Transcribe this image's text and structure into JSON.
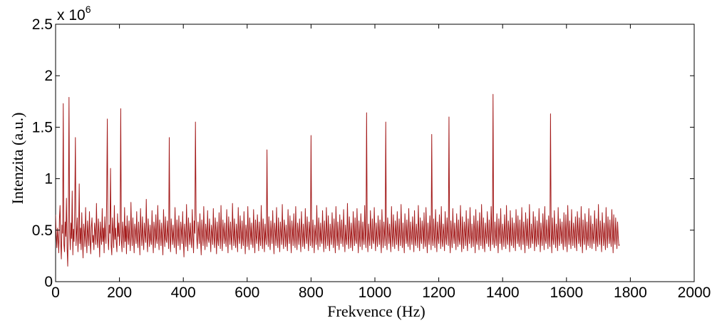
{
  "chart_data": {
    "type": "line",
    "title": "",
    "xlabel": "Frekvence (Hz)",
    "ylabel": "Intenzita (a.u.)",
    "xlim": [
      0,
      2000
    ],
    "ylim": [
      0,
      2.5
    ],
    "y_multiplier_base": "x 10",
    "y_multiplier_exponent": "6",
    "x_ticks": [
      "0",
      "200",
      "400",
      "600",
      "800",
      "1000",
      "1200",
      "1400",
      "1600",
      "1800",
      "2000"
    ],
    "y_ticks": [
      "0",
      "0.5",
      "1",
      "1.5",
      "2",
      "2.5"
    ],
    "grid": false,
    "legend": "none",
    "line_color": "#a31a1a",
    "x_start": 0,
    "x_step": 2,
    "series": [
      {
        "values": [
          0.65,
          0.45,
          0.33,
          0.52,
          0.41,
          0.28,
          0.61,
          0.74,
          0.39,
          0.22,
          0.55,
          0.47,
          1.73,
          0.36,
          0.29,
          0.58,
          0.44,
          0.81,
          0.33,
          0.15,
          0.62,
          1.79,
          0.48,
          0.31,
          0.57,
          0.42,
          0.88,
          0.26,
          0.51,
          0.39,
          0.73,
          1.4,
          0.35,
          0.48,
          0.62,
          0.29,
          0.44,
          0.95,
          0.37,
          0.52,
          0.31,
          0.67,
          0.41,
          0.23,
          0.56,
          0.48,
          0.34,
          0.72,
          0.43,
          0.28,
          0.59,
          0.46,
          0.35,
          0.68,
          0.41,
          0.27,
          0.53,
          0.62,
          0.38,
          0.45,
          0.31,
          0.57,
          0.49,
          0.36,
          0.76,
          0.42,
          0.33,
          0.61,
          0.47,
          0.24,
          0.58,
          0.44,
          0.36,
          0.71,
          0.39,
          0.52,
          0.28,
          0.63,
          0.45,
          0.37,
          0.82,
          1.58,
          0.43,
          0.31,
          0.55,
          0.47,
          1.1,
          0.35,
          0.26,
          0.62,
          0.48,
          0.33,
          0.74,
          0.41,
          0.52,
          0.38,
          0.29,
          0.66,
          0.44,
          0.57,
          0.35,
          0.48,
          1.68,
          0.41,
          0.29,
          0.58,
          0.46,
          0.33,
          0.72,
          0.39,
          0.54,
          0.27,
          0.64,
          0.45,
          0.36,
          0.59,
          0.42,
          0.3,
          0.77,
          0.47,
          0.35,
          0.62,
          0.43,
          0.28,
          0.56,
          0.49,
          0.37,
          0.68,
          0.41,
          0.33,
          0.58,
          0.45,
          0.26,
          0.71,
          0.48,
          0.35,
          0.63,
          0.42,
          0.31,
          0.57,
          0.46,
          0.38,
          0.8,
          0.43,
          0.29,
          0.61,
          0.47,
          0.34,
          0.55,
          0.41,
          0.36,
          0.69,
          0.44,
          0.28,
          0.58,
          0.49,
          0.33,
          0.65,
          0.42,
          0.37,
          0.74,
          0.45,
          0.31,
          0.6,
          0.47,
          0.35,
          0.57,
          0.43,
          0.26,
          0.7,
          0.48,
          0.34,
          0.63,
          0.41,
          0.38,
          0.59,
          0.46,
          0.32,
          1.4,
          0.44,
          0.29,
          0.61,
          0.48,
          0.36,
          0.55,
          0.42,
          0.33,
          0.72,
          0.45,
          0.27,
          0.6,
          0.47,
          0.35,
          0.64,
          0.43,
          0.31,
          0.58,
          0.49,
          0.37,
          0.68,
          0.41,
          0.24,
          0.56,
          0.46,
          0.34,
          0.75,
          0.44,
          0.3,
          0.62,
          0.48,
          0.36,
          0.57,
          0.42,
          0.33,
          0.7,
          0.45,
          0.28,
          0.59,
          0.47,
          1.55,
          0.65,
          0.43,
          0.32,
          0.58,
          0.49,
          0.37,
          0.66,
          0.41,
          0.26,
          0.6,
          0.46,
          0.35,
          0.73,
          0.44,
          0.31,
          0.56,
          0.48,
          0.34,
          0.69,
          0.42,
          0.38,
          0.61,
          0.45,
          0.29,
          0.55,
          0.47,
          0.36,
          0.71,
          0.43,
          0.33,
          0.62,
          0.49,
          0.27,
          0.58,
          0.41,
          0.35,
          0.67,
          0.46,
          0.32,
          0.74,
          0.44,
          0.3,
          0.6,
          0.48,
          0.37,
          0.57,
          0.42,
          0.34,
          0.7,
          0.45,
          0.28,
          0.63,
          0.47,
          0.36,
          0.58,
          0.43,
          0.31,
          0.76,
          0.49,
          0.35,
          0.61,
          0.41,
          0.33,
          0.56,
          0.46,
          0.29,
          0.72,
          0.44,
          0.37,
          0.64,
          0.48,
          0.32,
          0.59,
          0.42,
          0.35,
          0.68,
          0.45,
          0.27,
          0.55,
          0.47,
          0.34,
          0.73,
          0.43,
          0.31,
          0.62,
          0.49,
          0.36,
          0.57,
          0.41,
          0.33,
          0.7,
          0.46,
          0.28,
          0.6,
          0.44,
          0.37,
          0.65,
          0.48,
          0.3,
          0.58,
          0.42,
          0.35,
          0.74,
          0.45,
          0.32,
          0.61,
          0.47,
          0.29,
          0.56,
          0.43,
          0.36,
          1.28,
          0.49,
          0.34,
          0.63,
          0.41,
          0.31,
          0.59,
          0.46,
          0.37,
          0.69,
          0.44,
          0.27,
          0.57,
          0.48,
          0.35,
          0.72,
          0.42,
          0.33,
          0.62,
          0.45,
          0.29,
          0.58,
          0.47,
          0.36,
          0.75,
          0.43,
          0.32,
          0.6,
          0.49,
          0.34,
          0.55,
          0.41,
          0.3,
          0.7,
          0.46,
          0.37,
          0.64,
          0.44,
          0.28,
          0.59,
          0.48,
          0.35,
          0.66,
          0.42,
          0.33,
          0.73,
          0.45,
          0.31,
          0.57,
          0.47,
          0.36,
          0.61,
          0.43,
          0.29,
          0.68,
          0.49,
          0.34,
          0.56,
          0.41,
          0.32,
          0.71,
          0.46,
          0.37,
          0.63,
          0.44,
          0.3,
          0.58,
          0.48,
          0.35,
          1.42,
          0.42,
          0.33,
          0.6,
          0.45,
          0.28,
          0.55,
          0.47,
          0.36,
          0.74,
          0.43,
          0.31,
          0.62,
          0.49,
          0.34,
          0.57,
          0.41,
          0.37,
          0.69,
          0.46,
          0.29,
          0.59,
          0.44,
          0.32,
          0.72,
          0.48,
          0.35,
          0.64,
          0.42,
          0.3,
          0.56,
          0.45,
          0.36,
          0.67,
          0.47,
          0.33,
          0.61,
          0.43,
          0.28,
          0.73,
          0.49,
          0.35,
          0.58,
          0.41,
          0.31,
          0.65,
          0.46,
          0.37,
          0.6,
          0.44,
          0.34,
          0.7,
          0.48,
          0.29,
          0.55,
          0.42,
          0.36,
          0.76,
          0.45,
          0.32,
          0.63,
          0.47,
          0.33,
          0.57,
          0.43,
          0.3,
          0.68,
          0.49,
          0.35,
          0.62,
          0.41,
          0.37,
          0.71,
          0.46,
          0.28,
          0.59,
          0.44,
          0.34,
          0.66,
          0.48,
          0.31,
          0.58,
          0.42,
          0.36,
          0.74,
          0.45,
          0.33,
          1.64,
          0.47,
          0.29,
          0.56,
          0.43,
          0.35,
          0.69,
          0.49,
          0.32,
          0.61,
          0.41,
          0.37,
          0.72,
          0.46,
          0.3,
          0.57,
          0.44,
          0.34,
          0.64,
          0.48,
          0.36,
          0.6,
          0.42,
          0.28,
          0.7,
          0.45,
          0.33,
          0.58,
          0.47,
          0.35,
          1.55,
          0.43,
          0.31,
          0.62,
          0.49,
          0.37,
          0.56,
          0.41,
          0.29,
          0.73,
          0.46,
          0.34,
          0.65,
          0.44,
          0.32,
          0.59,
          0.48,
          0.36,
          0.68,
          0.42,
          0.3,
          0.61,
          0.45,
          0.35,
          0.75,
          0.47,
          0.33,
          0.57,
          0.43,
          0.28,
          0.66,
          0.49,
          0.37,
          0.6,
          0.41,
          0.34,
          0.71,
          0.46,
          0.31,
          0.58,
          0.44,
          0.36,
          0.63,
          0.48,
          0.29,
          0.69,
          0.42,
          0.35,
          0.56,
          0.45,
          0.33,
          0.74,
          0.47,
          0.3,
          0.62,
          0.43,
          0.37,
          0.59,
          0.49,
          0.32,
          0.67,
          0.41,
          0.34,
          0.72,
          0.46,
          0.28,
          0.57,
          0.44,
          0.36,
          0.64,
          0.48,
          0.31,
          1.43,
          0.42,
          0.35,
          0.61,
          0.45,
          0.33,
          0.7,
          0.47,
          0.29,
          0.58,
          0.43,
          0.37,
          0.65,
          0.49,
          0.32,
          0.73,
          0.41,
          0.34,
          0.56,
          0.46,
          0.3,
          0.68,
          0.44,
          0.36,
          0.62,
          0.48,
          0.35,
          1.6,
          0.42,
          0.28,
          0.59,
          0.45,
          0.33,
          0.71,
          0.47,
          0.37,
          0.57,
          0.43,
          0.31,
          0.66,
          0.49,
          0.34,
          0.6,
          0.41,
          0.36,
          0.74,
          0.46,
          0.29,
          0.63,
          0.44,
          0.32,
          0.58,
          0.48,
          0.35,
          0.69,
          0.42,
          0.3,
          0.61,
          0.45,
          0.37,
          0.72,
          0.47,
          0.33,
          0.56,
          0.43,
          0.34,
          0.64,
          0.49,
          0.28,
          0.7,
          0.41,
          0.36,
          0.59,
          0.46,
          0.31,
          0.67,
          0.44,
          0.35,
          0.75,
          0.48,
          0.32,
          0.62,
          0.42,
          0.29,
          0.57,
          0.45,
          0.37,
          0.68,
          0.47,
          0.34,
          0.6,
          0.43,
          0.3,
          0.73,
          0.49,
          0.36,
          1.82,
          0.41,
          0.33,
          0.58,
          0.46,
          0.35,
          0.66,
          0.44,
          0.28,
          0.61,
          0.48,
          0.37,
          0.71,
          0.42,
          0.31,
          0.56,
          0.45,
          0.34,
          0.65,
          0.47,
          0.32,
          0.74,
          0.43,
          0.36,
          0.59,
          0.49,
          0.29,
          0.69,
          0.41,
          0.35,
          0.62,
          0.46,
          0.33,
          0.57,
          0.44,
          0.3,
          0.7,
          0.48,
          0.37,
          0.64,
          0.42,
          0.34,
          0.6,
          0.45,
          0.31,
          0.72,
          0.47,
          0.36,
          0.58,
          0.43,
          0.28,
          0.67,
          0.49,
          0.35,
          0.61,
          0.41,
          0.32,
          0.75,
          0.46,
          0.33,
          0.56,
          0.44,
          0.37,
          0.68,
          0.48,
          0.3,
          0.63,
          0.42,
          0.34,
          0.59,
          0.45,
          0.36,
          0.71,
          0.47,
          0.29,
          0.57,
          0.43,
          0.35,
          0.66,
          0.49,
          0.31,
          0.73,
          0.41,
          0.37,
          0.6,
          0.46,
          0.32,
          0.64,
          0.44,
          0.34,
          1.63,
          0.48,
          0.28,
          0.62,
          0.42,
          0.36,
          0.69,
          0.45,
          0.33,
          0.56,
          0.47,
          0.3,
          0.72,
          0.43,
          0.35,
          0.61,
          0.49,
          0.37,
          0.58,
          0.41,
          0.31,
          0.67,
          0.46,
          0.34,
          0.65,
          0.44,
          0.29,
          0.74,
          0.48,
          0.36,
          0.59,
          0.42,
          0.32,
          0.7,
          0.45,
          0.35,
          0.57,
          0.47,
          0.33,
          0.63,
          0.43,
          0.3,
          0.68,
          0.49,
          0.37,
          0.62,
          0.41,
          0.34,
          0.73,
          0.46,
          0.28,
          0.6,
          0.44,
          0.36,
          0.66,
          0.48,
          0.31,
          0.58,
          0.42,
          0.35,
          0.71,
          0.45,
          0.33,
          0.64,
          0.47,
          0.32,
          0.56,
          0.43,
          0.37,
          0.69,
          0.49,
          0.3,
          0.61,
          0.41,
          0.34,
          0.75,
          0.46,
          0.36,
          0.59,
          0.44,
          0.29,
          0.67,
          0.48,
          0.35,
          0.57,
          0.42,
          0.31,
          0.72,
          0.45,
          0.33,
          0.63,
          0.47,
          0.37,
          0.6,
          0.43,
          0.34,
          0.7,
          0.49,
          0.28,
          0.65,
          0.41,
          0.36,
          0.62,
          0.46,
          0.32,
          0.58,
          0.44,
          0.35,
          0.36
        ]
      }
    ]
  }
}
